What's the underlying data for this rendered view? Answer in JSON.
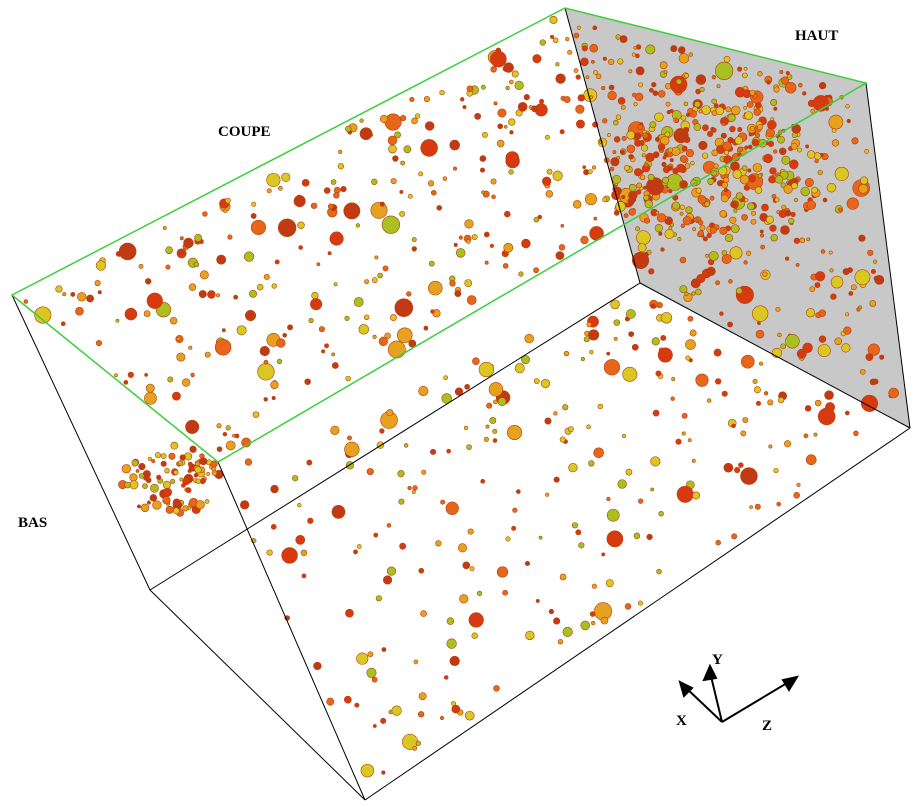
{
  "labels": {
    "coupe": "COUPE",
    "haut": "HAUT",
    "bas": "BAS"
  },
  "axes": {
    "x": "X",
    "y": "Y",
    "z": "Z"
  }
}
